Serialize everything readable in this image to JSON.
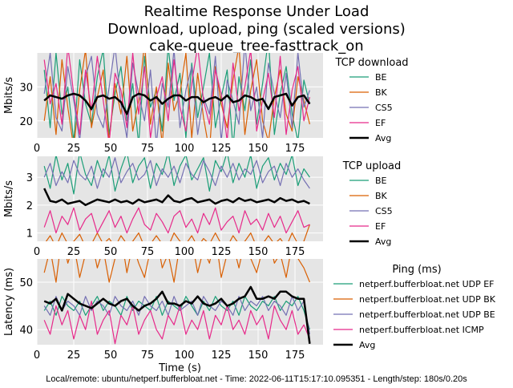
{
  "title": [
    "Realtime Response Under Load",
    "Download, upload, ping (scaled versions)",
    "cake-queue_tree-fasttrack_on"
  ],
  "footer": "Local/remote: ubuntu/netperf.bufferbloat.net - Time: 2022-06-11T15:17:10.095351 - Length/step: 180s/0.20s",
  "colors": {
    "green": "#1b9e77",
    "orange": "#d95f02",
    "purple": "#7570b3",
    "pink": "#e7298a",
    "avg": "#000000",
    "background": "#e5e5e5"
  },
  "chart_data": [
    {
      "type": "line",
      "legend_title": "TCP download",
      "ylabel": "Mbits/s",
      "xlabel": "",
      "xlim": [
        0,
        194
      ],
      "ylim": [
        15,
        40
      ],
      "xticks": [
        0,
        25,
        50,
        75,
        100,
        125,
        150,
        175
      ],
      "yticks": [
        20,
        30
      ],
      "grid": true,
      "legend": "right",
      "x_start": 5,
      "x_step": 4,
      "series": [
        {
          "name": "BE",
          "color": "#1b9e77",
          "values": [
            35,
            18,
            40,
            22,
            30,
            14,
            38,
            25,
            19,
            33,
            41,
            16,
            28,
            36,
            20,
            31,
            13,
            39,
            24,
            29,
            17,
            42,
            26,
            34,
            15,
            37,
            21,
            30,
            40,
            18,
            27,
            35,
            12,
            33,
            23,
            38,
            19,
            31,
            44,
            16,
            28,
            36,
            22,
            14,
            32,
            25
          ]
        },
        {
          "name": "BK",
          "color": "#d95f02",
          "values": [
            20,
            33,
            16,
            38,
            24,
            12,
            29,
            41,
            18,
            27,
            35,
            14,
            31,
            22,
            39,
            17,
            26,
            43,
            19,
            30,
            13,
            37,
            23,
            28,
            40,
            15,
            34,
            21,
            11,
            36,
            25,
            18,
            32,
            42,
            16,
            29,
            38,
            20,
            14,
            27,
            35,
            22,
            17,
            33,
            26,
            19
          ]
        },
        {
          "name": "CS5",
          "color": "#7570b3",
          "values": [
            28,
            40,
            21,
            17,
            36,
            26,
            14,
            33,
            39,
            22,
            18,
            30,
            42,
            25,
            15,
            37,
            28,
            20,
            35,
            13,
            31,
            24,
            41,
            18,
            29,
            36,
            16,
            27,
            22,
            39,
            14,
            32,
            26,
            19,
            43,
            23,
            30,
            15,
            37,
            28,
            21,
            34,
            18,
            40,
            24,
            29
          ]
        },
        {
          "name": "EF",
          "color": "#e7298a",
          "values": [
            38,
            25,
            31,
            19,
            42,
            28,
            16,
            35,
            23,
            39,
            26,
            13,
            34,
            29,
            18,
            40,
            22,
            36,
            15,
            27,
            33,
            20,
            38,
            24,
            17,
            31,
            42,
            26,
            19,
            35,
            28,
            14,
            37,
            23,
            30,
            41,
            17,
            26,
            34,
            21,
            39,
            16,
            29,
            36,
            20,
            27
          ]
        },
        {
          "name": "Avg",
          "color": "#000000",
          "values": [
            26,
            27.5,
            27,
            26.5,
            27.5,
            28,
            27.5,
            26,
            23.5,
            27,
            27.5,
            26.5,
            27,
            25.5,
            22,
            27,
            28,
            27.5,
            26,
            27,
            25,
            26.5,
            27.5,
            27.5,
            26,
            27,
            27,
            25.5,
            26.5,
            27,
            26,
            27.5,
            25.5,
            26,
            27.5,
            27,
            26,
            26.5,
            23.5,
            27,
            27.5,
            28,
            24.5,
            27,
            27.5,
            25
          ]
        }
      ]
    },
    {
      "type": "line",
      "legend_title": "TCP upload",
      "ylabel": "Mbits/s",
      "xlabel": "",
      "xlim": [
        0,
        194
      ],
      "ylim": [
        0.7,
        3.75
      ],
      "xticks": [
        0,
        25,
        50,
        75,
        100,
        125,
        150,
        175
      ],
      "yticks": [
        1,
        2,
        3
      ],
      "grid": true,
      "legend": "right",
      "x_start": 5,
      "x_step": 4,
      "series": [
        {
          "name": "BE",
          "color": "#1b9e77",
          "values": [
            3.4,
            2.6,
            3.8,
            2.9,
            3.5,
            2.4,
            3.9,
            3.1,
            2.7,
            3.6,
            3.0,
            3.8,
            2.5,
            3.3,
            3.9,
            2.8,
            3.4,
            3.7,
            2.6,
            3.5,
            3.1,
            3.9,
            2.7,
            3.4,
            3.8,
            2.9,
            3.3,
            3.7,
            2.5,
            3.6,
            3.2,
            3.9,
            2.8,
            3.5,
            3.0,
            3.8,
            2.6,
            3.4,
            3.7,
            2.9,
            3.5,
            3.1,
            3.8,
            2.7,
            3.3,
            3.0
          ]
        },
        {
          "name": "BK",
          "color": "#d95f02",
          "values": [
            0.6,
            0.9,
            0.5,
            1.0,
            0.6,
            0.7,
            0.95,
            0.5,
            0.6,
            1.0,
            0.6,
            0.8,
            0.5,
            0.9,
            0.6,
            0.7,
            1.0,
            0.5,
            0.6,
            0.9,
            0.6,
            0.5,
            1.0,
            0.7,
            0.6,
            0.9,
            0.5,
            0.8,
            0.6,
            1.0,
            0.6,
            0.5,
            0.9,
            0.6,
            0.7,
            1.0,
            0.5,
            0.6,
            0.9,
            0.6,
            0.8,
            0.5,
            1.0,
            0.6,
            0.7,
            1.3
          ]
        },
        {
          "name": "CS5",
          "color": "#7570b3",
          "values": [
            3.0,
            3.5,
            2.7,
            3.2,
            2.8,
            3.6,
            3.1,
            2.9,
            3.4,
            2.6,
            3.3,
            3.0,
            3.7,
            2.8,
            3.2,
            3.5,
            2.9,
            3.1,
            3.6,
            2.7,
            3.3,
            3.0,
            3.4,
            2.8,
            3.5,
            3.1,
            2.9,
            3.6,
            3.2,
            2.7,
            3.4,
            3.0,
            3.5,
            2.9,
            3.3,
            3.1,
            3.6,
            2.8,
            3.2,
            3.4,
            2.7,
            3.5,
            3.0,
            3.3,
            2.9,
            2.6
          ]
        },
        {
          "name": "EF",
          "color": "#e7298a",
          "values": [
            1.2,
            1.8,
            1.0,
            1.6,
            1.3,
            1.9,
            1.1,
            1.5,
            1.7,
            1.0,
            1.4,
            1.8,
            1.2,
            1.6,
            1.0,
            1.5,
            1.9,
            1.3,
            1.1,
            1.7,
            1.4,
            1.0,
            1.6,
            1.8,
            1.2,
            1.5,
            1.0,
            1.7,
            1.3,
            1.9,
            1.1,
            1.4,
            1.6,
            1.0,
            1.8,
            1.3,
            1.5,
            1.1,
            1.7,
            1.2,
            1.6,
            1.0,
            1.4,
            1.8,
            1.2,
            1.3
          ]
        },
        {
          "name": "Avg",
          "color": "#000000",
          "values": [
            2.6,
            2.15,
            2.1,
            2.2,
            2.05,
            2.1,
            2.15,
            2.0,
            2.1,
            2.2,
            2.15,
            2.1,
            2.2,
            2.1,
            2.15,
            2.05,
            2.2,
            2.1,
            2.15,
            2.2,
            2.1,
            2.35,
            2.15,
            2.1,
            2.2,
            2.25,
            2.1,
            2.15,
            2.2,
            2.05,
            2.15,
            2.2,
            2.1,
            2.25,
            2.15,
            2.2,
            2.1,
            2.15,
            2.2,
            2.1,
            2.25,
            2.15,
            2.2,
            2.1,
            2.15,
            2.05
          ]
        }
      ]
    },
    {
      "type": "line",
      "legend_title": "Ping (ms)",
      "ylabel": "Latency (ms)",
      "xlabel": "Time (s)",
      "xlim": [
        0,
        194
      ],
      "ylim": [
        36.8,
        54.9
      ],
      "xticks": [
        0,
        25,
        50,
        75,
        100,
        125,
        150,
        175
      ],
      "yticks": [
        40,
        50
      ],
      "grid": true,
      "legend": "right",
      "x_start": 5,
      "x_step": 4,
      "series": [
        {
          "name": "netperf.bufferbloat.net UDP EF",
          "color": "#1b9e77",
          "values": [
            44,
            46,
            43,
            47,
            45,
            44,
            46,
            43,
            45,
            47,
            44,
            46,
            45,
            43,
            47,
            44,
            46,
            45,
            44,
            47,
            43,
            46,
            45,
            44,
            47,
            45,
            43,
            46,
            44,
            47,
            45,
            44,
            46,
            43,
            47,
            45,
            44,
            46,
            45,
            47,
            44,
            46,
            45,
            47,
            44,
            40
          ]
        },
        {
          "name": "netperf.bufferbloat.net UDP BK",
          "color": "#d95f02",
          "values": [
            52,
            57,
            50,
            60,
            54,
            58,
            51,
            56,
            59,
            53,
            57,
            50,
            55,
            60,
            52,
            58,
            54,
            51,
            57,
            60,
            53,
            56,
            50,
            58,
            55,
            59,
            52,
            57,
            54,
            60,
            51,
            56,
            58,
            53,
            59,
            55,
            52,
            57,
            60,
            54,
            56,
            51,
            58,
            55,
            53,
            50
          ]
        },
        {
          "name": "netperf.bufferbloat.net UDP BE",
          "color": "#7570b3",
          "values": [
            45,
            43,
            47,
            44,
            46,
            45,
            43,
            47,
            44,
            46,
            45,
            43,
            47,
            45,
            44,
            46,
            43,
            47,
            45,
            44,
            46,
            43,
            47,
            44,
            45,
            46,
            43,
            47,
            45,
            44,
            46,
            45,
            43,
            47,
            44,
            46,
            45,
            47,
            44,
            46,
            45,
            43,
            47,
            44,
            46,
            39
          ]
        },
        {
          "name": "netperf.bufferbloat.net ICMP",
          "color": "#e7298a",
          "values": [
            42,
            39,
            45,
            41,
            44,
            38,
            43,
            40,
            46,
            39,
            42,
            44,
            37,
            43,
            41,
            45,
            39,
            42,
            44,
            40,
            38,
            43,
            41,
            45,
            39,
            42,
            40,
            44,
            38,
            43,
            41,
            45,
            40,
            42,
            39,
            44,
            41,
            43,
            38,
            45,
            42,
            40,
            44,
            39,
            41,
            38
          ]
        },
        {
          "name": "Avg",
          "color": "#000000",
          "values": [
            46,
            45.5,
            46.5,
            44,
            47.5,
            46.5,
            45.5,
            45,
            44.5,
            45.5,
            46.5,
            45.5,
            45,
            46,
            46.5,
            45,
            44,
            45,
            45.5,
            46.5,
            48,
            45.5,
            45.5,
            45,
            46,
            45.5,
            47,
            45.5,
            45,
            45.5,
            46.5,
            45,
            45.5,
            46.5,
            47,
            49,
            46.5,
            46.5,
            47,
            46.5,
            48,
            48,
            47,
            46.5,
            46.5,
            37
          ]
        }
      ]
    }
  ]
}
